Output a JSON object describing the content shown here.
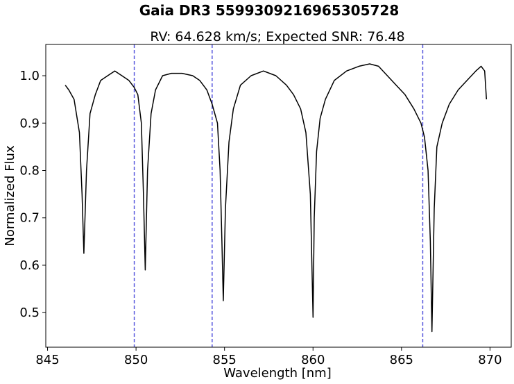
{
  "chart_data": {
    "type": "line",
    "suptitle": "Gaia DR3 5599309216965305728",
    "title": "RV: 64.628 km/s; Expected SNR: 76.48",
    "xlabel": "Wavelength [nm]",
    "ylabel": "Normalized Flux",
    "xlim": [
      844.9,
      871.2
    ],
    "ylim": [
      0.427,
      1.066
    ],
    "xticks": [
      845,
      850,
      855,
      860,
      865,
      870
    ],
    "xtick_labels": [
      "845",
      "850",
      "855",
      "860",
      "865",
      "870"
    ],
    "yticks": [
      0.5,
      0.6,
      0.7,
      0.8,
      0.9,
      1.0
    ],
    "ytick_labels": [
      "0.5",
      "0.6",
      "0.7",
      "0.8",
      "0.9",
      "1.0"
    ],
    "grid": false,
    "vertical_lines": {
      "x": [
        849.9,
        854.3,
        866.2
      ],
      "color": "#5555dd",
      "style": "dashed"
    },
    "series": [
      {
        "color": "#000000",
        "x": [
          846.0,
          846.2,
          846.5,
          846.8,
          846.95,
          847.05,
          847.2,
          847.4,
          847.7,
          848.0,
          848.4,
          848.8,
          849.2,
          849.6,
          849.9,
          850.1,
          850.3,
          850.42,
          850.52,
          850.65,
          850.85,
          851.1,
          851.5,
          852.0,
          852.6,
          853.2,
          853.6,
          854.0,
          854.3,
          854.6,
          854.75,
          854.85,
          854.93,
          855.05,
          855.25,
          855.5,
          855.9,
          856.5,
          857.2,
          857.9,
          858.5,
          858.9,
          859.3,
          859.6,
          859.85,
          860.0,
          860.07,
          860.2,
          860.4,
          860.7,
          861.2,
          861.9,
          862.6,
          863.2,
          863.7,
          864.2,
          864.7,
          865.2,
          865.7,
          866.1,
          866.3,
          866.5,
          866.63,
          866.72,
          866.85,
          867.0,
          867.3,
          867.7,
          868.2,
          868.7,
          869.2,
          869.5,
          869.7,
          869.8
        ],
        "y": [
          0.98,
          0.97,
          0.95,
          0.88,
          0.75,
          0.625,
          0.8,
          0.92,
          0.96,
          0.99,
          1.0,
          1.01,
          1.0,
          0.99,
          0.975,
          0.96,
          0.9,
          0.75,
          0.59,
          0.8,
          0.92,
          0.97,
          1.0,
          1.005,
          1.005,
          1.0,
          0.99,
          0.97,
          0.94,
          0.9,
          0.8,
          0.65,
          0.525,
          0.72,
          0.86,
          0.93,
          0.98,
          1.0,
          1.01,
          1.0,
          0.98,
          0.96,
          0.93,
          0.88,
          0.75,
          0.49,
          0.7,
          0.84,
          0.91,
          0.95,
          0.99,
          1.01,
          1.02,
          1.025,
          1.02,
          1.0,
          0.98,
          0.96,
          0.93,
          0.9,
          0.87,
          0.8,
          0.65,
          0.46,
          0.72,
          0.85,
          0.9,
          0.94,
          0.97,
          0.99,
          1.01,
          1.02,
          1.01,
          0.95
        ]
      }
    ]
  }
}
